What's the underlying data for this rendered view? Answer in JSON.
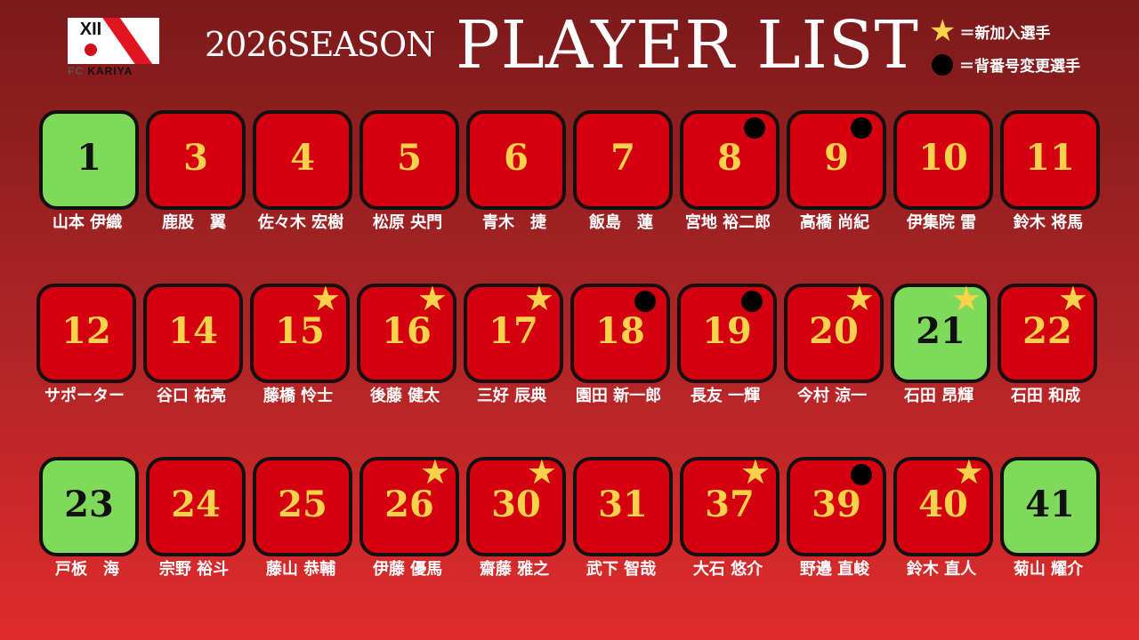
{
  "logo": {
    "text_fc": "FC",
    "text_name": "KARIYA",
    "mark": "XII"
  },
  "header": {
    "season": "2026SEASON",
    "title": "PLAYER LIST"
  },
  "legend": [
    {
      "icon": "star-icon",
      "label": "＝新加入選手"
    },
    {
      "icon": "dot-icon",
      "label": "＝背番号変更選手"
    }
  ],
  "colors": {
    "field_player": "#d5000f",
    "goalkeeper": "#7fd95a",
    "number": "#f8d24a",
    "star": "#f8d24a"
  },
  "rows": [
    [
      {
        "number": "1",
        "name": "山本 伊織",
        "gk": true,
        "mark": ""
      },
      {
        "number": "3",
        "name": "鹿股　翼",
        "gk": false,
        "mark": ""
      },
      {
        "number": "4",
        "name": "佐々木 宏樹",
        "gk": false,
        "mark": ""
      },
      {
        "number": "5",
        "name": "松原 央門",
        "gk": false,
        "mark": ""
      },
      {
        "number": "6",
        "name": "青木　捷",
        "gk": false,
        "mark": ""
      },
      {
        "number": "7",
        "name": "飯島　蓮",
        "gk": false,
        "mark": ""
      },
      {
        "number": "8",
        "name": "宮地 裕二郎",
        "gk": false,
        "mark": "dot"
      },
      {
        "number": "9",
        "name": "高橋 尚紀",
        "gk": false,
        "mark": "dot"
      },
      {
        "number": "10",
        "name": "伊集院 雷",
        "gk": false,
        "mark": ""
      },
      {
        "number": "11",
        "name": "鈴木 将馬",
        "gk": false,
        "mark": ""
      }
    ],
    [
      {
        "number": "12",
        "name": "サポーター",
        "gk": false,
        "mark": ""
      },
      {
        "number": "14",
        "name": "谷口 祐亮",
        "gk": false,
        "mark": ""
      },
      {
        "number": "15",
        "name": "藤橋 怜士",
        "gk": false,
        "mark": "star"
      },
      {
        "number": "16",
        "name": "後藤 健太",
        "gk": false,
        "mark": "star"
      },
      {
        "number": "17",
        "name": "三好 辰典",
        "gk": false,
        "mark": "star"
      },
      {
        "number": "18",
        "name": "園田 新一郎",
        "gk": false,
        "mark": "dot"
      },
      {
        "number": "19",
        "name": "長友 一輝",
        "gk": false,
        "mark": "dot"
      },
      {
        "number": "20",
        "name": "今村 涼一",
        "gk": false,
        "mark": "star"
      },
      {
        "number": "21",
        "name": "石田 昂輝",
        "gk": true,
        "mark": "star"
      },
      {
        "number": "22",
        "name": "石田 和成",
        "gk": false,
        "mark": "star"
      }
    ],
    [
      {
        "number": "23",
        "name": "戸板　海",
        "gk": true,
        "mark": ""
      },
      {
        "number": "24",
        "name": "宗野 裕斗",
        "gk": false,
        "mark": ""
      },
      {
        "number": "25",
        "name": "藤山 恭輔",
        "gk": false,
        "mark": ""
      },
      {
        "number": "26",
        "name": "伊藤 優馬",
        "gk": false,
        "mark": "star"
      },
      {
        "number": "30",
        "name": "齋藤 雅之",
        "gk": false,
        "mark": "star"
      },
      {
        "number": "31",
        "name": "武下 智哉",
        "gk": false,
        "mark": ""
      },
      {
        "number": "37",
        "name": "大石 悠介",
        "gk": false,
        "mark": "star"
      },
      {
        "number": "39",
        "name": "野邉 直峻",
        "gk": false,
        "mark": "dot"
      },
      {
        "number": "40",
        "name": "鈴木 直人",
        "gk": false,
        "mark": "star"
      },
      {
        "number": "41",
        "name": "菊山 耀介",
        "gk": true,
        "mark": ""
      }
    ]
  ]
}
